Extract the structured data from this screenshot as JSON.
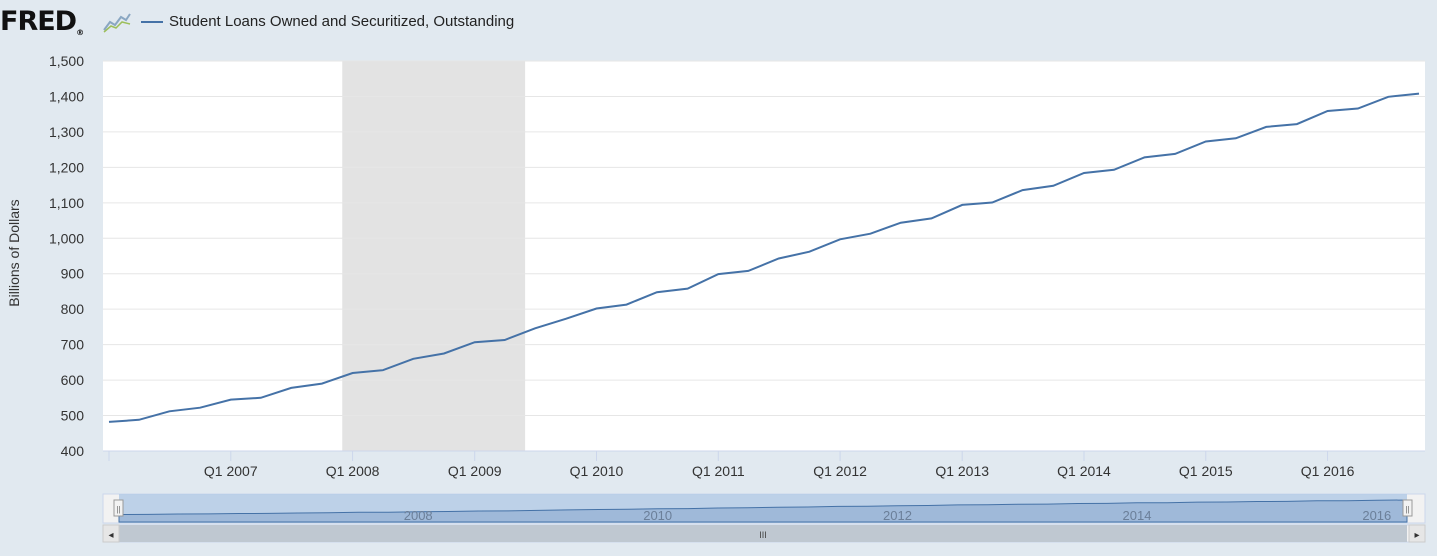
{
  "brand": {
    "logo_text": "FRED",
    "logo_mark": "®"
  },
  "chart_data": {
    "type": "line",
    "title": "",
    "series": [
      {
        "name": "Student Loans Owned and Securitized, Outstanding",
        "color": "#4572a7",
        "x": [
          "2006-01-01",
          "2006-04-01",
          "2006-07-01",
          "2006-10-01",
          "2007-01-01",
          "2007-04-01",
          "2007-07-01",
          "2007-10-01",
          "2008-01-01",
          "2008-04-01",
          "2008-07-01",
          "2008-10-01",
          "2009-01-01",
          "2009-04-01",
          "2009-07-01",
          "2009-10-01",
          "2010-01-01",
          "2010-04-01",
          "2010-07-01",
          "2010-10-01",
          "2011-01-01",
          "2011-04-01",
          "2011-07-01",
          "2011-10-01",
          "2012-01-01",
          "2012-04-01",
          "2012-07-01",
          "2012-10-01",
          "2013-01-01",
          "2013-04-01",
          "2013-07-01",
          "2013-10-01",
          "2014-01-01",
          "2014-04-01",
          "2014-07-01",
          "2014-10-01",
          "2015-01-01",
          "2015-04-01",
          "2015-07-01",
          "2015-10-01",
          "2016-01-01",
          "2016-04-01",
          "2016-07-01",
          "2016-10-01"
        ],
        "values": [
          482,
          488,
          512,
          522,
          545,
          550,
          578,
          590,
          620,
          628,
          660,
          675,
          707,
          713,
          746,
          773,
          802,
          813,
          848,
          858,
          899,
          908,
          943,
          962,
          997,
          1013,
          1044,
          1056,
          1094,
          1101,
          1136,
          1148,
          1184,
          1193,
          1228,
          1238,
          1273,
          1282,
          1314,
          1322,
          1359,
          1366,
          1399,
          1408
        ]
      }
    ],
    "xlabel": "",
    "ylabel": "Billions of Dollars",
    "ylim": [
      400,
      1500
    ],
    "yticks": [
      "400",
      "500",
      "600",
      "700",
      "800",
      "900",
      "1,000",
      "1,100",
      "1,200",
      "1,300",
      "1,400",
      "1,500"
    ],
    "xticks": [
      {
        "date": "2007-01-01",
        "label": "Q1 2007"
      },
      {
        "date": "2008-01-01",
        "label": "Q1 2008"
      },
      {
        "date": "2009-01-01",
        "label": "Q1 2009"
      },
      {
        "date": "2010-01-01",
        "label": "Q1 2010"
      },
      {
        "date": "2011-01-01",
        "label": "Q1 2011"
      },
      {
        "date": "2012-01-01",
        "label": "Q1 2012"
      },
      {
        "date": "2013-01-01",
        "label": "Q1 2013"
      },
      {
        "date": "2014-01-01",
        "label": "Q1 2014"
      },
      {
        "date": "2015-01-01",
        "label": "Q1 2015"
      },
      {
        "date": "2016-01-01",
        "label": "Q1 2016"
      }
    ],
    "recession": {
      "start": "2007-12-01",
      "end": "2009-06-01",
      "color": "#e3e3e3"
    },
    "grid": true,
    "legend": "top-left",
    "navigator": {
      "year_labels": [
        "2008",
        "2010",
        "2012",
        "2014",
        "2016"
      ],
      "handle_glyph": "||",
      "scroll_glyph": "III",
      "left_arrow": "◂",
      "right_arrow": "▸"
    }
  }
}
